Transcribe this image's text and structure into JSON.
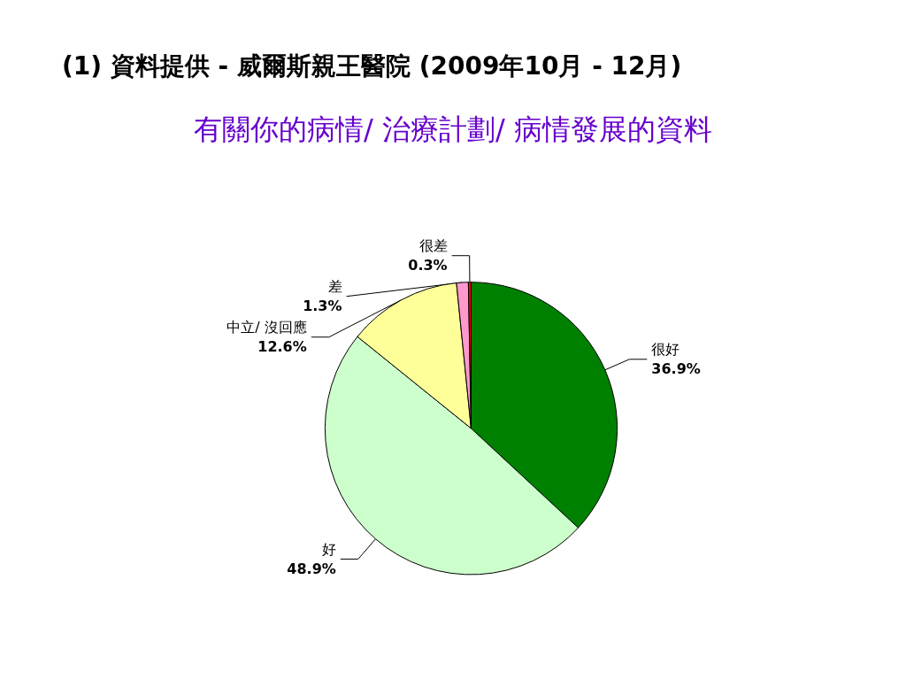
{
  "chart_data": {
    "type": "pie",
    "title": "(1) 資料提供 - 威爾斯親王醫院 (2009年10月 - 12月)",
    "subtitle": "有關你的病情/ 治療計劃/ 病情發展的資料",
    "categories": [
      "很好",
      "好",
      "中立/ 沒回應",
      "差",
      "很差"
    ],
    "values": [
      36.9,
      48.9,
      12.6,
      1.3,
      0.3
    ],
    "colors": [
      "#008000",
      "#ccffcc",
      "#ffff99",
      "#ff99cc",
      "#ff0000"
    ],
    "value_labels": [
      "36.9%",
      "48.9%",
      "12.6%",
      "1.3%",
      "0.3%"
    ],
    "legend": false
  }
}
